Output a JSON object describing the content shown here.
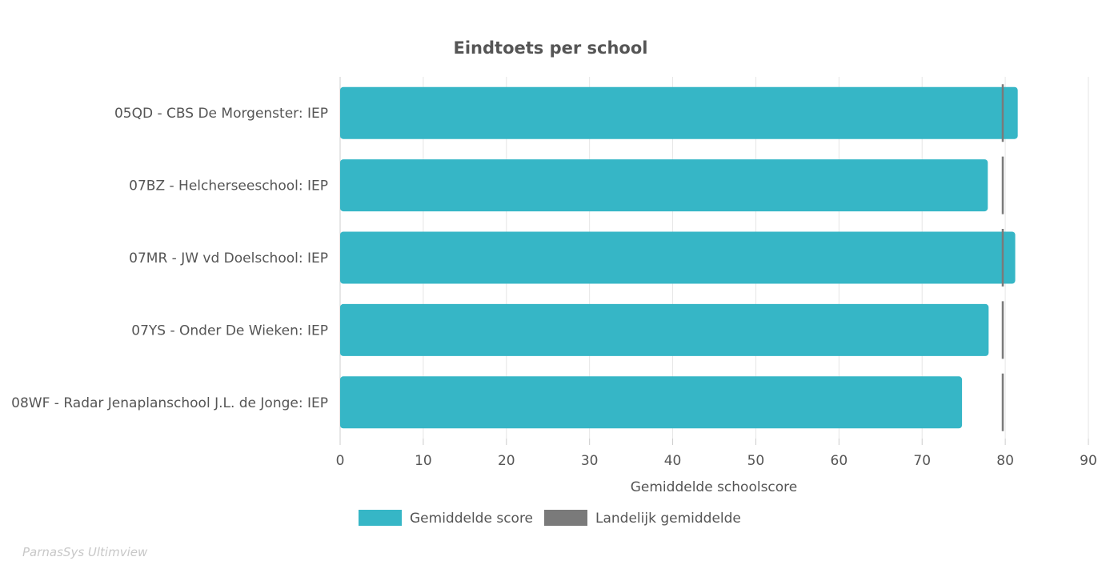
{
  "chart_data": {
    "type": "bar",
    "orientation": "horizontal",
    "title": "Eindtoets per school",
    "xlabel": "Gemiddelde schoolscore",
    "ylabel": "",
    "xlim": [
      0,
      90
    ],
    "xticks": [
      0,
      10,
      20,
      30,
      40,
      50,
      60,
      70,
      80,
      90
    ],
    "categories": [
      "05QD - CBS De Morgenster: IEP",
      "07BZ - Helcherseeschool: IEP",
      "07MR - JW vd Doelschool: IEP",
      "07YS - Onder De Wieken: IEP",
      "08WF - Radar Jenaplanschool J.L. de Jonge: IEP"
    ],
    "series": [
      {
        "name": "Gemiddelde score",
        "kind": "bar",
        "color": "#36b6c6",
        "values": [
          81.5,
          77.9,
          81.2,
          78.0,
          74.8
        ]
      },
      {
        "name": "Landelijk gemiddelde",
        "kind": "marker",
        "color": "#7a7a7a",
        "values": [
          79.7,
          79.7,
          79.7,
          79.7,
          79.7
        ]
      }
    ],
    "grid": true,
    "legend_position": "bottom"
  },
  "footer": {
    "watermark": "ParnasSys Ultimview"
  }
}
